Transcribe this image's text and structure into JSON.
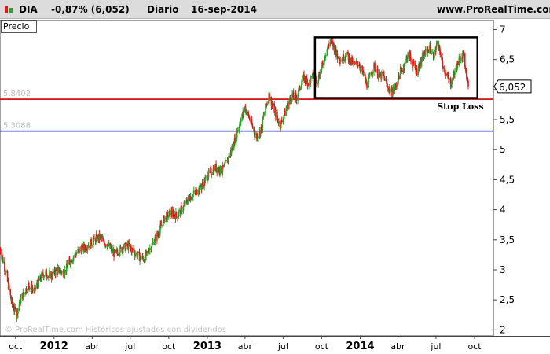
{
  "header": {
    "symbol": "DIA",
    "change": "-0,87% (6,052)",
    "period": "Diario",
    "date": "16-sep-2014",
    "site": "www.ProRealTime.com"
  },
  "panel_label": "Precio",
  "watermark": "© ProRealTime.com  Históricos ajustados con dividendos",
  "colors": {
    "up": "#2ea02e",
    "down": "#e01818",
    "support": "#cc0000",
    "support2": "#0000cc",
    "box": "#000000"
  },
  "chart_data": {
    "type": "candlestick",
    "title": "",
    "xlabel": "",
    "ylabel": "",
    "x_range": [
      "2011-08-25",
      "2014-11-15"
    ],
    "ylim": [
      1.9,
      7.15
    ],
    "y_ticks": [
      "7",
      "6,5",
      "6",
      "5,5",
      "5",
      "4,5",
      "4",
      "3,5",
      "3",
      "2,5",
      "2"
    ],
    "x_ticks": [
      {
        "date": "2011-10-01",
        "label": "oct",
        "bold": false
      },
      {
        "date": "2012-01-01",
        "label": "2012",
        "bold": true
      },
      {
        "date": "2012-04-01",
        "label": "abr",
        "bold": false
      },
      {
        "date": "2012-07-01",
        "label": "jul",
        "bold": false
      },
      {
        "date": "2012-10-01",
        "label": "oct",
        "bold": false
      },
      {
        "date": "2013-01-01",
        "label": "2013",
        "bold": true
      },
      {
        "date": "2013-04-01",
        "label": "abr",
        "bold": false
      },
      {
        "date": "2013-07-01",
        "label": "jul",
        "bold": false
      },
      {
        "date": "2013-10-01",
        "label": "oct",
        "bold": false
      },
      {
        "date": "2014-01-01",
        "label": "2014",
        "bold": true
      },
      {
        "date": "2014-04-01",
        "label": "abr",
        "bold": false
      },
      {
        "date": "2014-07-01",
        "label": "jul",
        "bold": false
      },
      {
        "date": "2014-10-01",
        "label": "oct",
        "bold": false
      }
    ],
    "horizontal_lines": [
      {
        "value": 5.8402,
        "label": "5,8402",
        "color": "#cc0000"
      },
      {
        "value": 5.3088,
        "label": "5,3088",
        "color": "#0000cc"
      }
    ],
    "range_box": {
      "x_start": "2013-09-15",
      "x_end": "2014-10-08",
      "y_low": 5.86,
      "y_high": 6.87
    },
    "annotation": {
      "text": "Stop Loss",
      "date": "2014-08-28",
      "value": 5.72
    },
    "last_price": {
      "value": 6.052,
      "label": "6,052"
    },
    "price_path": [
      [
        "2011-08-25",
        3.35
      ],
      [
        "2011-09-05",
        3.05
      ],
      [
        "2011-09-15",
        2.7
      ],
      [
        "2011-09-22",
        2.45
      ],
      [
        "2011-10-03",
        2.25
      ],
      [
        "2011-10-10",
        2.45
      ],
      [
        "2011-10-20",
        2.6
      ],
      [
        "2011-11-01",
        2.75
      ],
      [
        "2011-11-15",
        2.65
      ],
      [
        "2011-11-25",
        2.8
      ],
      [
        "2011-12-10",
        2.95
      ],
      [
        "2011-12-25",
        2.9
      ],
      [
        "2012-01-10",
        3.0
      ],
      [
        "2012-01-25",
        2.95
      ],
      [
        "2012-02-05",
        3.1
      ],
      [
        "2012-02-20",
        3.25
      ],
      [
        "2012-03-05",
        3.35
      ],
      [
        "2012-03-20",
        3.4
      ],
      [
        "2012-04-01",
        3.45
      ],
      [
        "2012-04-15",
        3.55
      ],
      [
        "2012-04-25",
        3.5
      ],
      [
        "2012-05-10",
        3.4
      ],
      [
        "2012-05-25",
        3.25
      ],
      [
        "2012-06-10",
        3.35
      ],
      [
        "2012-06-25",
        3.4
      ],
      [
        "2012-07-10",
        3.3
      ],
      [
        "2012-07-25",
        3.2
      ],
      [
        "2012-08-05",
        3.2
      ],
      [
        "2012-08-20",
        3.4
      ],
      [
        "2012-09-05",
        3.6
      ],
      [
        "2012-09-20",
        3.85
      ],
      [
        "2012-10-05",
        3.95
      ],
      [
        "2012-10-20",
        3.9
      ],
      [
        "2012-11-05",
        4.05
      ],
      [
        "2012-11-20",
        4.2
      ],
      [
        "2012-12-05",
        4.3
      ],
      [
        "2012-12-20",
        4.4
      ],
      [
        "2013-01-05",
        4.6
      ],
      [
        "2013-01-20",
        4.7
      ],
      [
        "2013-02-05",
        4.65
      ],
      [
        "2013-02-20",
        4.85
      ],
      [
        "2013-03-05",
        5.1
      ],
      [
        "2013-03-15",
        5.35
      ],
      [
        "2013-03-25",
        5.55
      ],
      [
        "2013-04-01",
        5.7
      ],
      [
        "2013-04-10",
        5.55
      ],
      [
        "2013-04-18",
        5.4
      ],
      [
        "2013-04-28",
        5.2
      ],
      [
        "2013-05-08",
        5.3
      ],
      [
        "2013-05-18",
        5.65
      ],
      [
        "2013-05-28",
        5.9
      ],
      [
        "2013-06-05",
        5.75
      ],
      [
        "2013-06-15",
        5.55
      ],
      [
        "2013-06-24",
        5.4
      ],
      [
        "2013-07-02",
        5.55
      ],
      [
        "2013-07-12",
        5.75
      ],
      [
        "2013-07-22",
        5.9
      ],
      [
        "2013-08-01",
        5.85
      ],
      [
        "2013-08-10",
        6.05
      ],
      [
        "2013-08-20",
        6.2
      ],
      [
        "2013-09-01",
        6.1
      ],
      [
        "2013-09-12",
        6.25
      ],
      [
        "2013-09-20",
        6.15
      ],
      [
        "2013-10-01",
        6.35
      ],
      [
        "2013-10-10",
        6.6
      ],
      [
        "2013-10-20",
        6.8
      ],
      [
        "2013-10-28",
        6.75
      ],
      [
        "2013-11-08",
        6.55
      ],
      [
        "2013-11-18",
        6.5
      ],
      [
        "2013-11-28",
        6.6
      ],
      [
        "2013-12-08",
        6.5
      ],
      [
        "2013-12-18",
        6.4
      ],
      [
        "2013-12-28",
        6.45
      ],
      [
        "2014-01-08",
        6.25
      ],
      [
        "2014-01-18",
        6.05
      ],
      [
        "2014-01-28",
        6.3
      ],
      [
        "2014-02-05",
        6.4
      ],
      [
        "2014-02-15",
        6.2
      ],
      [
        "2014-02-25",
        6.25
      ],
      [
        "2014-03-07",
        6.05
      ],
      [
        "2014-03-17",
        5.95
      ],
      [
        "2014-03-27",
        6.05
      ],
      [
        "2014-04-06",
        6.3
      ],
      [
        "2014-04-16",
        6.4
      ],
      [
        "2014-04-26",
        6.6
      ],
      [
        "2014-05-05",
        6.45
      ],
      [
        "2014-05-15",
        6.3
      ],
      [
        "2014-05-25",
        6.45
      ],
      [
        "2014-06-05",
        6.6
      ],
      [
        "2014-06-15",
        6.7
      ],
      [
        "2014-06-25",
        6.55
      ],
      [
        "2014-07-03",
        6.75
      ],
      [
        "2014-07-10",
        6.65
      ],
      [
        "2014-07-18",
        6.4
      ],
      [
        "2014-07-28",
        6.2
      ],
      [
        "2014-08-05",
        6.1
      ],
      [
        "2014-08-15",
        6.3
      ],
      [
        "2014-08-25",
        6.5
      ],
      [
        "2014-09-03",
        6.6
      ],
      [
        "2014-09-10",
        6.35
      ],
      [
        "2014-09-16",
        6.052
      ]
    ]
  }
}
